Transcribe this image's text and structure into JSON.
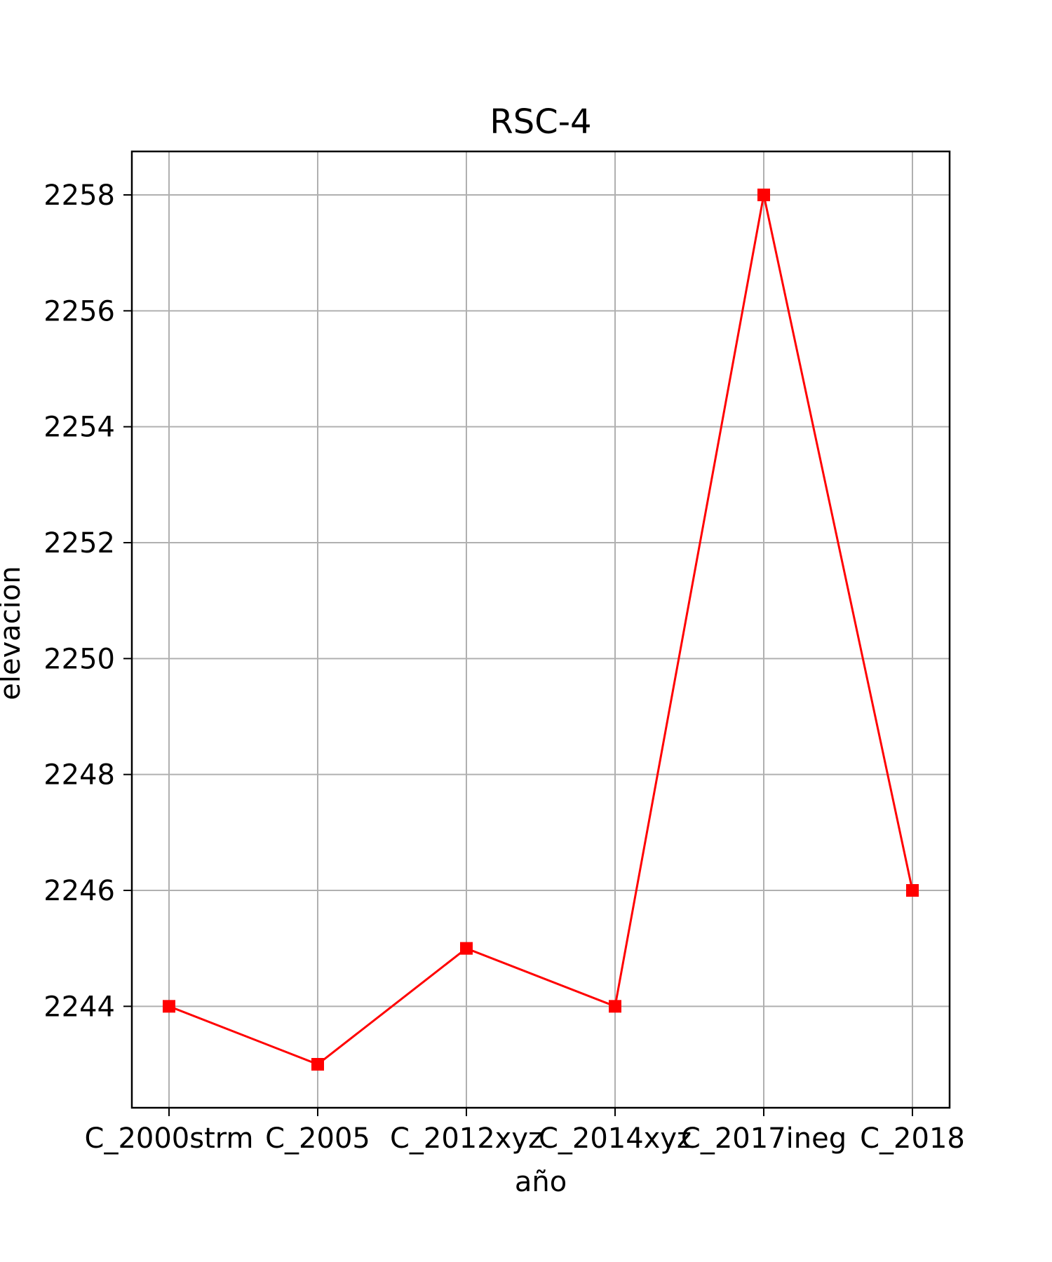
{
  "chart_data": {
    "type": "line",
    "title": "RSC-4",
    "xlabel": "año",
    "ylabel": "elevacion",
    "categories": [
      "C_2000strm",
      "C_2005",
      "C_2012xyz",
      "C_2014xyz",
      "C_2017ineg",
      "C_2018"
    ],
    "series": [
      {
        "values": [
          2244,
          2243,
          2245,
          2244,
          2258,
          2246
        ],
        "color": "#ff0000",
        "marker": "square"
      }
    ],
    "ylim": [
      2242.25,
      2258.75
    ],
    "yticks": [
      2244,
      2246,
      2248,
      2250,
      2252,
      2254,
      2256,
      2258
    ],
    "grid": true
  }
}
